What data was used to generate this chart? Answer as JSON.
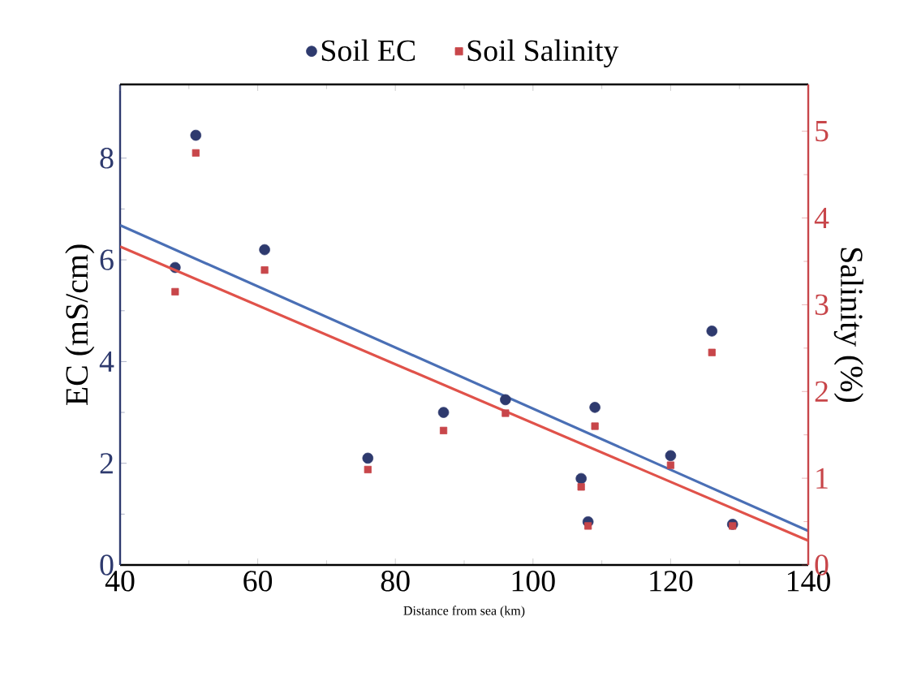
{
  "chart_data": {
    "type": "scatter",
    "xlabel": "Distance from sea (km)",
    "ylabel": "EC (mS/cm)",
    "y2label": "Salinity (%)",
    "xlim": [
      40,
      140
    ],
    "xticks": [
      40,
      60,
      80,
      100,
      120,
      140
    ],
    "ylim": [
      0,
      9.45
    ],
    "yticks": [
      0,
      2,
      4,
      6,
      8
    ],
    "y2lim": [
      0,
      5.54
    ],
    "y2ticks": [
      0,
      1,
      2,
      3,
      4,
      5
    ],
    "legend": "top",
    "grid": false,
    "series": [
      {
        "name": "Soil EC",
        "marker": "circle",
        "color": "#2e3a6e",
        "x": [
          48,
          51,
          61,
          76,
          87,
          96,
          107,
          108,
          109,
          120,
          126,
          129
        ],
        "values": [
          5.85,
          8.45,
          6.2,
          2.1,
          3.0,
          3.25,
          1.7,
          0.85,
          3.1,
          2.15,
          4.6,
          0.8
        ]
      },
      {
        "name": "Soil Salinity",
        "marker": "square",
        "axis": "y2",
        "color": "#c8464a",
        "x": [
          48,
          51,
          61,
          76,
          87,
          96,
          107,
          108,
          109,
          120,
          126,
          129
        ],
        "values": [
          3.15,
          4.75,
          3.4,
          1.1,
          1.55,
          1.75,
          0.9,
          0.45,
          1.6,
          1.15,
          2.45,
          0.45
        ]
      },
      {
        "type": "line",
        "color": "#4a6fb5",
        "x": [
          40,
          140
        ],
        "values": [
          6.68,
          0.67
        ]
      },
      {
        "type": "line",
        "axis": "y2",
        "color": "#e0524a",
        "x": [
          40,
          140
        ],
        "values": [
          3.67,
          0.28
        ]
      }
    ]
  }
}
